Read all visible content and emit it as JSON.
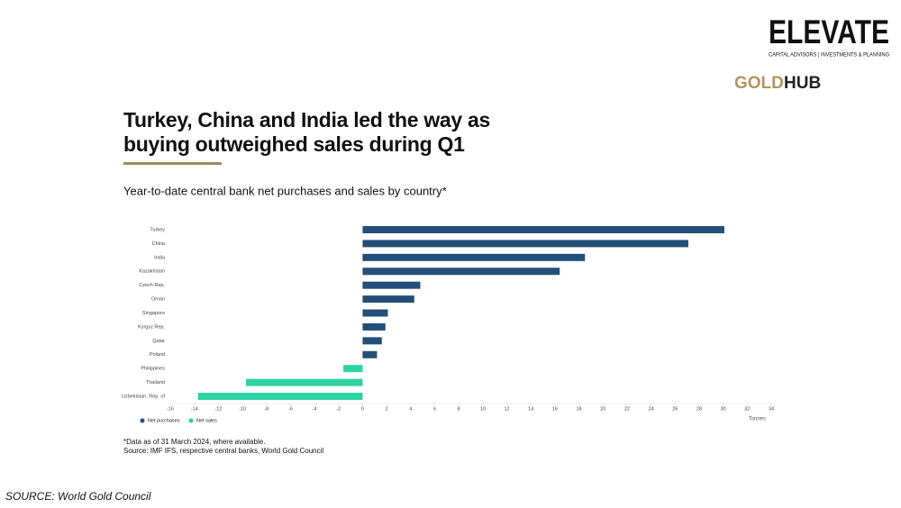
{
  "brand": {
    "logo": "ELEVATE",
    "tagline": "CAPITAL ADVISORS | INVESTMENTS & PLANNING",
    "goldhub": [
      "GOLD",
      "HUB"
    ]
  },
  "chart_data": {
    "type": "bar",
    "orientation": "horizontal",
    "title": "Turkey, China and India led the way as buying outweighed sales during Q1",
    "subtitle": "Year-to-date central bank net purchases and sales by country*",
    "x_label": "Tonnes",
    "categories": [
      "Turkey",
      "China",
      "India",
      "Kazakhstan",
      "Czech Rep.",
      "Oman",
      "Singapore",
      "Kyrgyz Rep.",
      "Qatar",
      "Poland",
      "Philippines",
      "Thailand",
      "Uzbekistan, Rep. of"
    ],
    "series": [
      {
        "name": "Net purchases",
        "color": "#244f78",
        "values": [
          30.1,
          27.1,
          18.5,
          16.4,
          4.8,
          4.3,
          2.1,
          1.9,
          1.6,
          1.2,
          null,
          null,
          null
        ]
      },
      {
        "name": "Net sales",
        "color": "#2ed3a2",
        "values": [
          null,
          null,
          null,
          null,
          null,
          null,
          null,
          null,
          null,
          null,
          -1.6,
          -9.7,
          -13.7
        ]
      }
    ],
    "xlim": [
      -16,
      34
    ],
    "xticks": [
      -16,
      -14,
      -12,
      -10,
      -8,
      -6,
      -4,
      -2,
      0,
      2,
      4,
      6,
      8,
      10,
      12,
      14,
      16,
      18,
      20,
      22,
      24,
      26,
      28,
      30,
      32,
      34
    ],
    "grid": false,
    "legend": "bottom-left",
    "footnotes": [
      "*Data as of 31 March 2024, where available.",
      "Source: IMF IFS, respective central banks, World Gold Council"
    ]
  },
  "source": "SOURCE: World Gold Council"
}
